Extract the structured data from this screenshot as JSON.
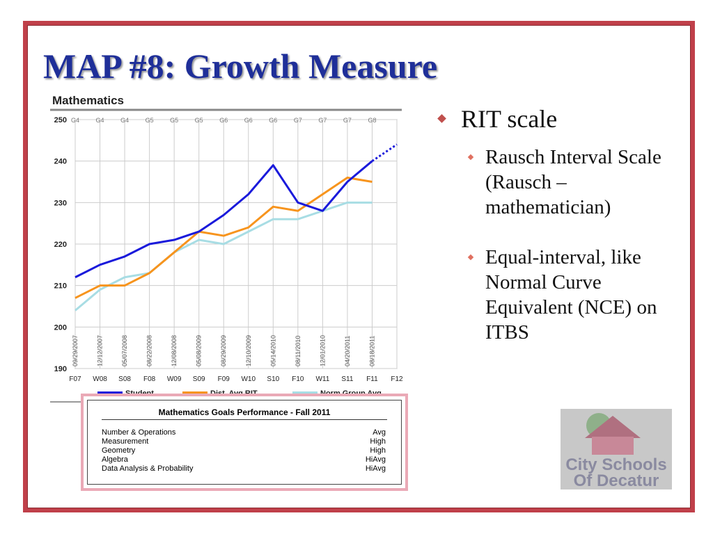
{
  "slide": {
    "title": "MAP #8: Growth Measure",
    "bullets": [
      {
        "text": "RIT scale",
        "sub": [
          "Rausch Interval Scale (Rausch – mathematician)",
          "Equal-interval, like Normal Curve Equivalent (NCE) on ITBS"
        ]
      }
    ],
    "logo": {
      "line1": "City Schools",
      "line2": "Of Decatur"
    }
  },
  "chart_data": {
    "type": "line",
    "title": "Mathematics",
    "categories": [
      "F07",
      "W08",
      "S08",
      "F08",
      "W09",
      "S09",
      "F09",
      "W10",
      "S10",
      "F10",
      "W11",
      "S11",
      "F11",
      "F12"
    ],
    "grades": [
      "G4",
      "G4",
      "G4",
      "G5",
      "G5",
      "G5",
      "G6",
      "G6",
      "G6",
      "G7",
      "G7",
      "G7",
      "G8",
      null
    ],
    "dates": [
      "09/29/2007",
      "12/12/2007",
      "05/07/2008",
      "08/22/2008",
      "12/08/2008",
      "05/08/2009",
      "08/29/2009",
      "12/10/2009",
      "05/14/2010",
      "08/11/2010",
      "12/01/2010",
      "04/20/2011",
      "08/18/2011",
      null
    ],
    "ylim": [
      190,
      250
    ],
    "yticks": [
      190,
      200,
      210,
      220,
      230,
      240,
      250
    ],
    "grid": true,
    "series": [
      {
        "name": "Student",
        "color": "#1a1adb",
        "projected_from": 12,
        "values": [
          212,
          215,
          217,
          220,
          221,
          223,
          227,
          232,
          239,
          230,
          228,
          235,
          240,
          244
        ]
      },
      {
        "name": "Dist. Avg RIT",
        "color": "#f7941d",
        "values": [
          207,
          210,
          210,
          213,
          218,
          223,
          222,
          224,
          229,
          228,
          232,
          236,
          235,
          null
        ]
      },
      {
        "name": "Norm Group Avg",
        "color": "#a8dde4",
        "values": [
          204,
          209,
          212,
          213,
          218,
          221,
          220,
          223,
          226,
          226,
          228,
          230,
          230,
          null
        ]
      }
    ]
  },
  "goals_table": {
    "title": "Mathematics Goals Performance - Fall 2011",
    "rows": [
      [
        "Number & Operations",
        "Avg"
      ],
      [
        "Measurement",
        "High"
      ],
      [
        "Geometry",
        "High"
      ],
      [
        "Algebra",
        "HiAvg"
      ],
      [
        "Data Analysis & Probability",
        "HiAvg"
      ]
    ]
  }
}
